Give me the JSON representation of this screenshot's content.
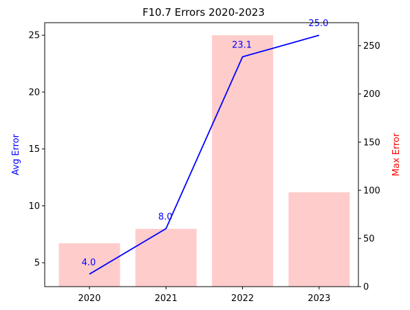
{
  "chart_data": {
    "type": "bar+line",
    "title": "F10.7 Errors 2020-2023",
    "categories": [
      "2020",
      "2021",
      "2022",
      "2023"
    ],
    "line_series": {
      "name": "Avg Error",
      "axis": "left",
      "values": [
        4.0,
        8.0,
        23.1,
        25.0
      ],
      "labels": [
        "4.0",
        "8.0",
        "23.1",
        "25.0"
      ],
      "color": "#0000ff"
    },
    "bar_series": {
      "name": "Max Error",
      "axis": "right",
      "values": [
        45,
        60,
        261,
        98
      ],
      "color": "#ffcccc"
    },
    "ylabel_left": "Avg Error",
    "ylabel_right": "Max Error",
    "ylabel_left_color": "#0000ff",
    "ylabel_right_color": "#ff0000",
    "ylim_left": [
      2.9,
      26.1
    ],
    "ylim_right": [
      0,
      274
    ],
    "yticks_left": [
      "5",
      "10",
      "15",
      "20",
      "25"
    ],
    "yticks_right": [
      "0",
      "50",
      "100",
      "150",
      "200",
      "250"
    ],
    "grid": false
  }
}
